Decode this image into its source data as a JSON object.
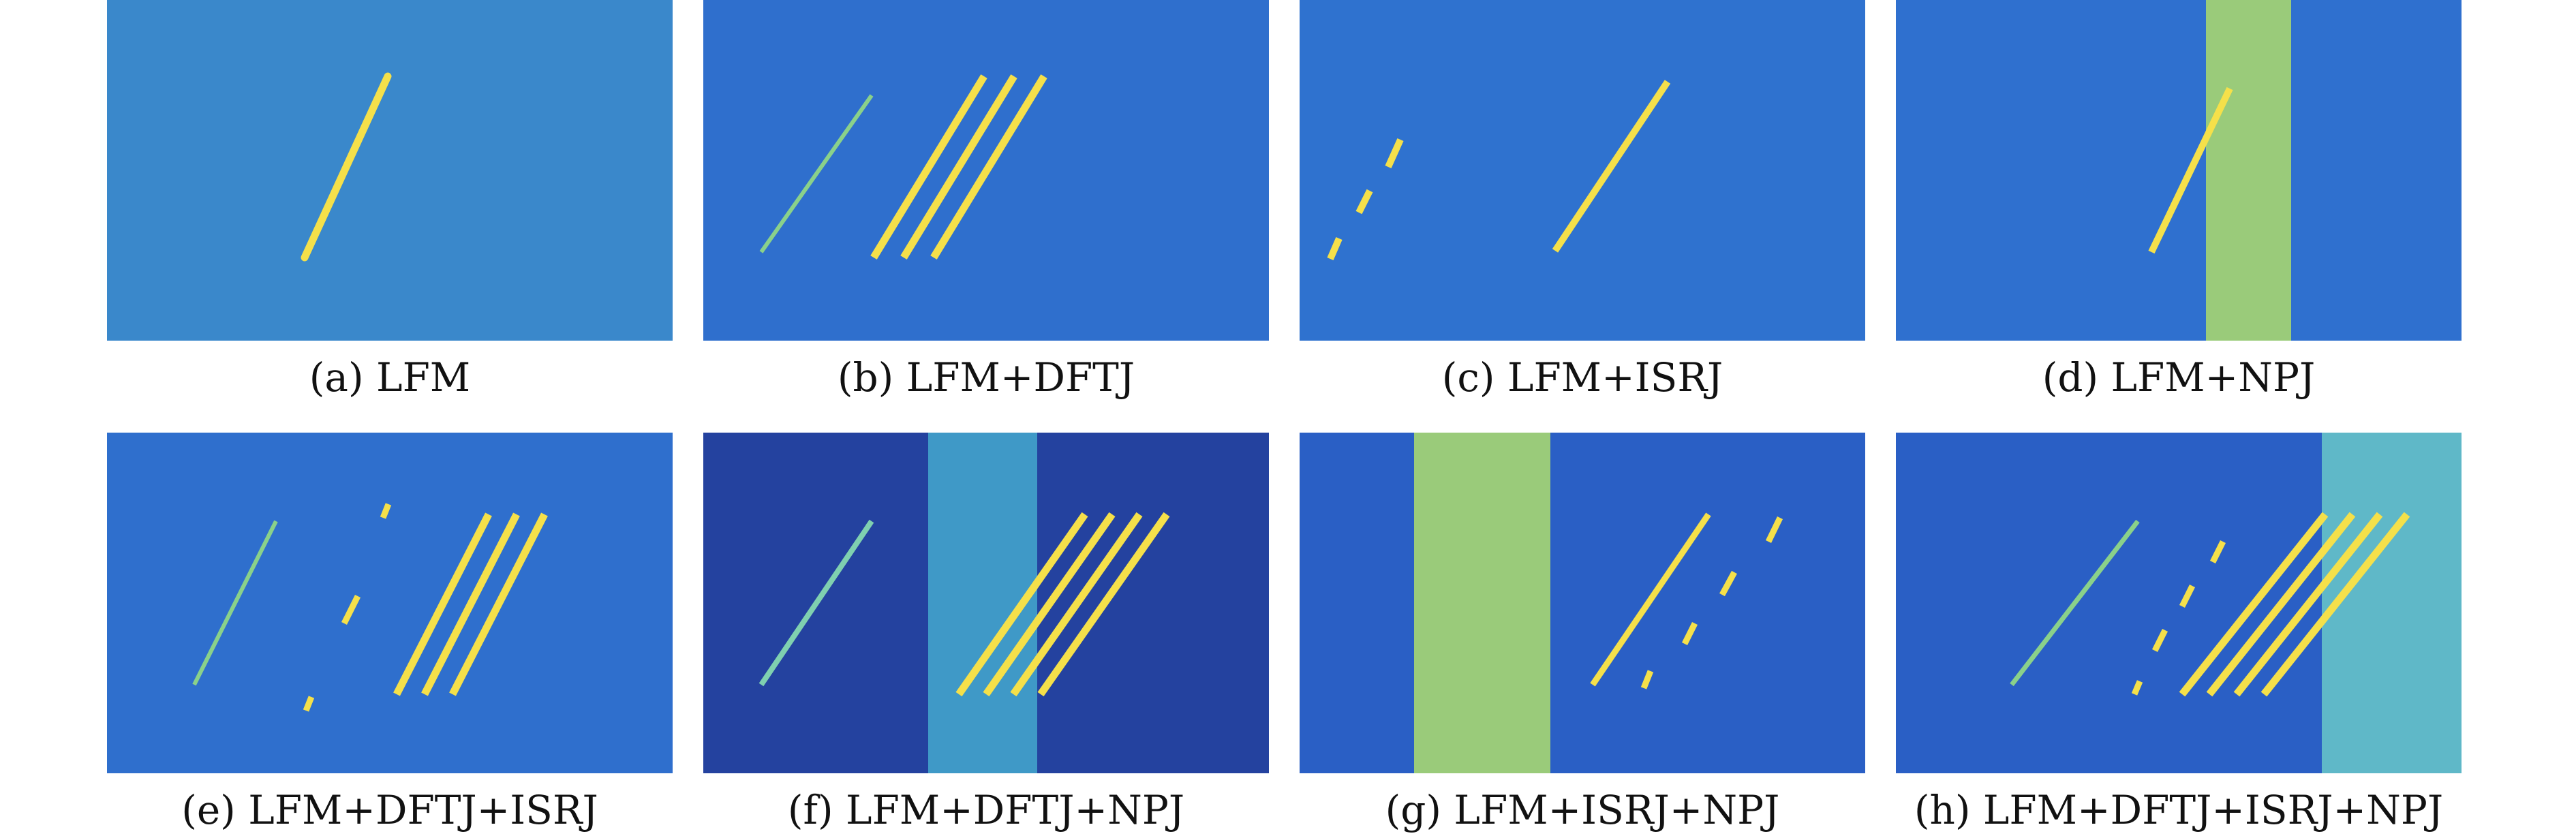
{
  "panels": [
    {
      "label": "(a) LFM"
    },
    {
      "label": "(b) LFM+DFTJ"
    },
    {
      "label": "(c) LFM+ISRJ"
    },
    {
      "label": "(d) LFM+NPJ"
    },
    {
      "label": "(e) LFM+DFTJ+ISRJ"
    },
    {
      "label": "(f) LFM+DFTJ+NPJ"
    },
    {
      "label": "(g) LFM+ISRJ+NPJ"
    },
    {
      "label": "(h) LFM+DFTJ+ISRJ+NPJ"
    }
  ],
  "colors": {
    "background_noise": "#2f6fd0",
    "noise_band": "#5fb8c8",
    "signal": "#f5e04a",
    "dark_region": "#24429f"
  }
}
